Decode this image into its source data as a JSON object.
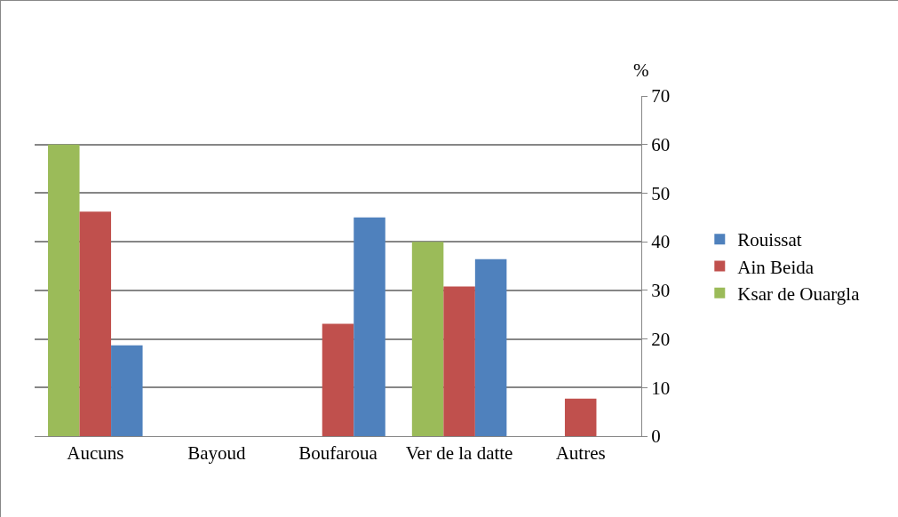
{
  "chart_data": {
    "type": "bar",
    "ylabel": "%",
    "categories": [
      "Aucuns",
      "Bayoud",
      "Boufaroua",
      "Ver de la datte",
      "Autres"
    ],
    "series": [
      {
        "name": "Rouissat",
        "color": "#4f81bd",
        "values": [
          18.7,
          null,
          45,
          36.4,
          null
        ]
      },
      {
        "name": "Ain Beida",
        "color": "#c0504d",
        "values": [
          46.2,
          null,
          23.1,
          30.8,
          7.7
        ]
      },
      {
        "name": "Ksar de Ouargla",
        "color": "#9bbb59",
        "values": [
          60,
          null,
          null,
          40,
          null
        ]
      }
    ],
    "ylim": [
      0,
      70
    ],
    "yticks": [
      0,
      10,
      20,
      30,
      40,
      50,
      60,
      70
    ],
    "grid": "y",
    "legend": "right"
  }
}
